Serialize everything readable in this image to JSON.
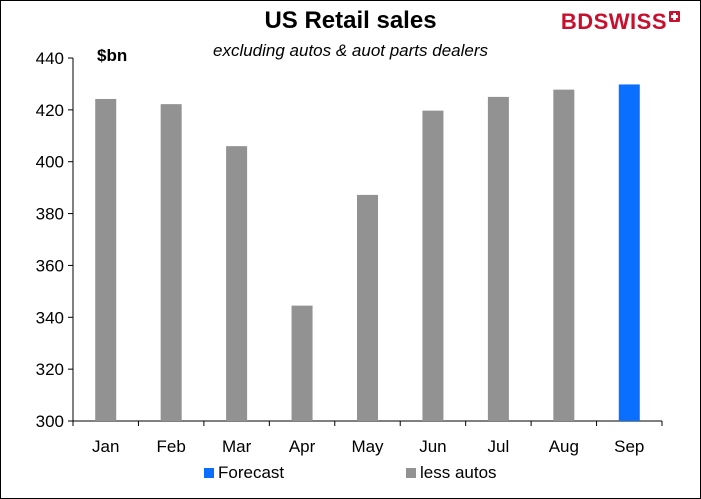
{
  "chart_data": {
    "type": "bar",
    "title": "US Retail sales",
    "subtitle": "excluding autos & auot parts dealers",
    "ylabel": "$bn",
    "xlabel": "",
    "ylim": [
      300,
      440
    ],
    "yticks": [
      300,
      320,
      340,
      360,
      380,
      400,
      420,
      440
    ],
    "categories": [
      "Jan",
      "Feb",
      "Mar",
      "Apr",
      "May",
      "Jun",
      "Jul",
      "Aug",
      "Sep"
    ],
    "series": [
      {
        "name": "less autos",
        "color": "#929292",
        "values": [
          424.2,
          422.2,
          406.0,
          344.5,
          387.2,
          419.7,
          425.0,
          427.8,
          null
        ]
      },
      {
        "name": "Forecast",
        "color": "#0a6eff",
        "values": [
          null,
          null,
          null,
          null,
          null,
          null,
          null,
          null,
          429.8
        ]
      }
    ],
    "legend": {
      "placement": "bottom",
      "order": [
        "Forecast",
        "less autos"
      ]
    },
    "grid": false
  },
  "brand": {
    "logo_text_1": "BD",
    "logo_text_2": "SWISS",
    "logo_icon": "swiss-cross-icon",
    "color": "#c8102e"
  }
}
